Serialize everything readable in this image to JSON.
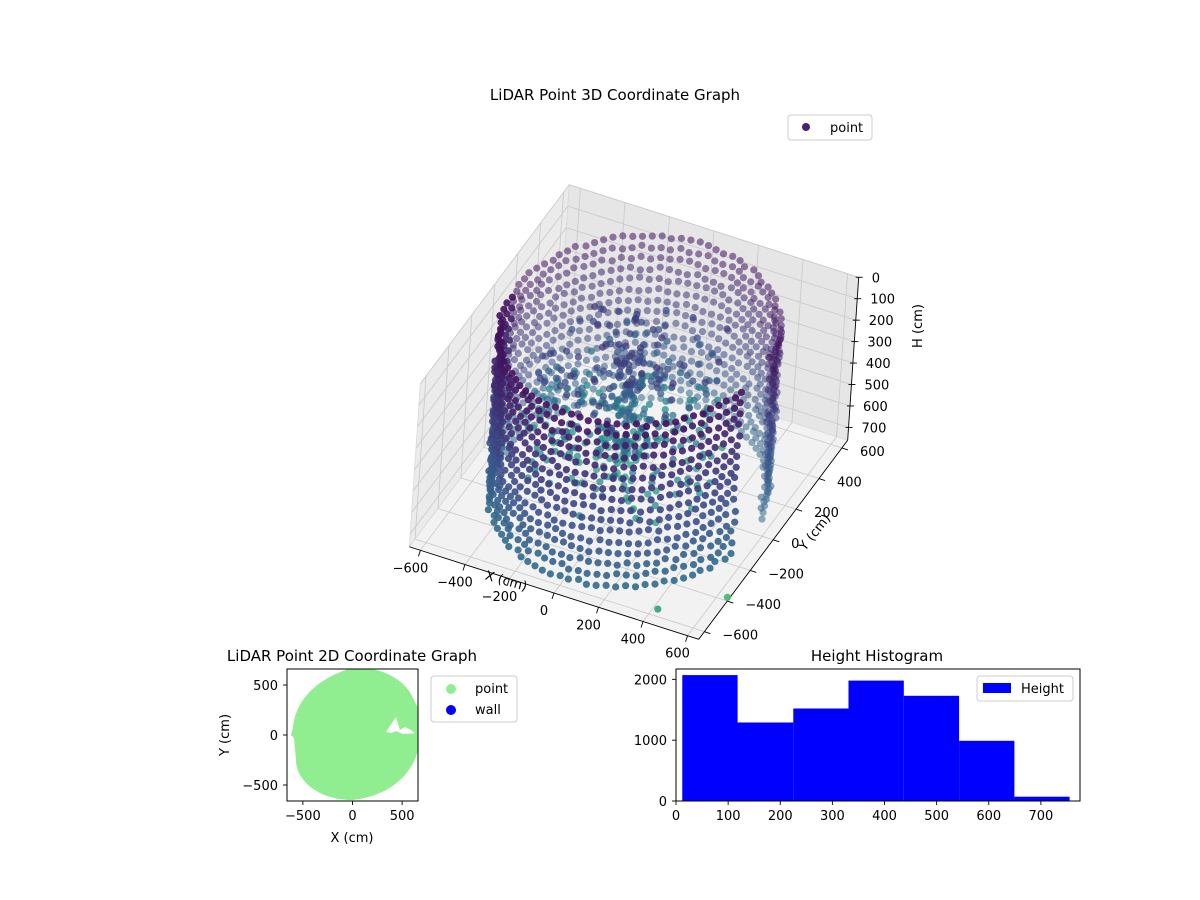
{
  "colors": {
    "viridis_dark": "#440154",
    "viridis_mid": "#3b528b",
    "viridis_teal": "#21918c",
    "viridis_green": "#5ec962",
    "point_2d": "#90ee90",
    "wall": "#0000ff",
    "hist_bar": "#0000ff"
  },
  "chart_data": [
    {
      "type": "scatter",
      "subtype": "3d",
      "title": "LiDAR Point 3D Coordinate Graph",
      "xlabel": "X (cm)",
      "ylabel": "Y (cm)",
      "zlabel": "H (cm)",
      "xlim": [
        -650,
        650
      ],
      "ylim": [
        -650,
        650
      ],
      "zlim": [
        0,
        760
      ],
      "z_inverted": true,
      "x_ticks": [
        "−600",
        "−400",
        "−200",
        "0",
        "200",
        "400",
        "600"
      ],
      "y_ticks": [
        "−600",
        "−400",
        "−200",
        "0",
        "200",
        "400",
        "600"
      ],
      "z_ticks": [
        "0",
        "100",
        "200",
        "300",
        "400",
        "500",
        "600",
        "700"
      ],
      "legend": [
        {
          "label": "point",
          "color": "#482173"
        }
      ],
      "legend_position": "top-right",
      "grid": true,
      "colormap": "viridis",
      "description_series": {
        "wall_radius_cm": 560,
        "wall_heights_cm": [
          0,
          50,
          100,
          150,
          200,
          250,
          300,
          350,
          400,
          450,
          500,
          550,
          600,
          650,
          700,
          750
        ],
        "outliers": [
          {
            "x": 420,
            "y": -560,
            "h": 760
          },
          {
            "x": 640,
            "y": -380,
            "h": 760
          }
        ]
      }
    },
    {
      "type": "scatter",
      "title": "LiDAR Point 2D Coordinate Graph",
      "xlabel": "X (cm)",
      "ylabel": "Y (cm)",
      "xlim": [
        -660,
        660
      ],
      "ylim": [
        -660,
        660
      ],
      "x_ticks": [
        "−500",
        "0",
        "500"
      ],
      "y_ticks": [
        "−500",
        "0",
        "500"
      ],
      "series": [
        {
          "name": "point",
          "color": "#90ee90",
          "shape": "filled disc, radius ≈ 560–650 cm, notch near x≈300–660, y≈-30–150"
        },
        {
          "name": "wall",
          "color": "#0000ff",
          "points": []
        }
      ],
      "legend_position": "outside-right"
    },
    {
      "type": "bar",
      "subtype": "histogram",
      "title": "Height Histogram",
      "bins": [
        [
          12,
          118
        ],
        [
          118,
          225
        ],
        [
          225,
          331
        ],
        [
          331,
          437
        ],
        [
          437,
          543
        ],
        [
          543,
          649
        ],
        [
          649,
          755
        ]
      ],
      "values": [
        2070,
        1290,
        1520,
        1980,
        1730,
        990,
        70
      ],
      "xlim": [
        0,
        775
      ],
      "ylim": [
        0,
        2170
      ],
      "x_ticks": [
        "0",
        "100",
        "200",
        "300",
        "400",
        "500",
        "600",
        "700"
      ],
      "y_ticks": [
        "0",
        "1000",
        "2000"
      ],
      "series": [
        {
          "name": "Height",
          "color": "#0000ff"
        }
      ],
      "legend_position": "upper-right"
    }
  ]
}
